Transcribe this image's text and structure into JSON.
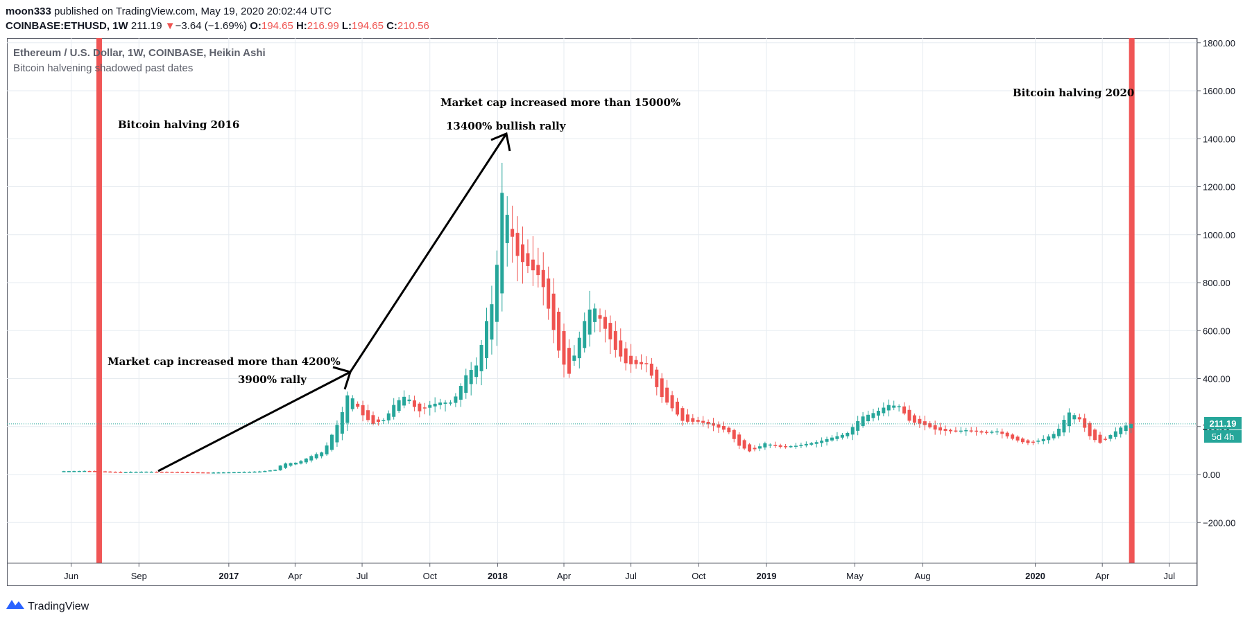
{
  "header": {
    "publisher": "moon333",
    "published_text": "published on TradingView.com, May 19, 2020 20:02:44 UTC",
    "symbol": "COINBASE:ETHUSD, 1W",
    "last": "211.19",
    "change": "−3.64 (−1.69%)",
    "o_label": "O:",
    "o_val": "194.65",
    "h_label": "H:",
    "h_val": "216.99",
    "l_label": "L:",
    "l_val": "194.65",
    "c_label": "C:",
    "c_val": "210.56"
  },
  "legend": {
    "title": "Ethereum / U.S. Dollar, 1W, COINBASE, Heikin Ashi",
    "subtitle": "Bitcoin halvening shadowed past dates"
  },
  "annotations": {
    "halving_2016": "Bitcoin halving 2016",
    "halving_2020": "Bitcoin halving 2020",
    "mcap_4200": "Market cap increased more than 4200%",
    "rally_3900": "3900% rally",
    "mcap_15000": "Market cap increased more than 15000%",
    "rally_13400": "13400% bullish rally"
  },
  "price_tag": {
    "price": "211.19",
    "countdown": "5d 4h"
  },
  "footer": {
    "brand": "TradingView"
  },
  "colors": {
    "up": "#26a69a",
    "down": "#ef5350",
    "halving": "#f05555",
    "grid": "#e6ebf0"
  },
  "chart_data": {
    "type": "candlestick",
    "chart_style": "Heikin Ashi",
    "interval": "1W",
    "ylim": [
      -380,
      1820
    ],
    "y_ticks": [
      1800,
      1600,
      1400,
      1200,
      1000,
      800,
      600,
      400,
      200,
      0,
      -200
    ],
    "y_tick_labels": [
      "1800.00",
      "1600.00",
      "1400.00",
      "1200.00",
      "1000.00",
      "800.00",
      "600.00",
      "400.00",
      "200.00",
      "0.00",
      "−200.00"
    ],
    "x_ticks": [
      {
        "label": "Jun",
        "date": "2016-06-01",
        "bold": false
      },
      {
        "label": "Sep",
        "date": "2016-09-01",
        "bold": false
      },
      {
        "label": "2017",
        "date": "2017-01-01",
        "bold": true
      },
      {
        "label": "Apr",
        "date": "2017-04-01",
        "bold": false
      },
      {
        "label": "Jul",
        "date": "2017-07-01",
        "bold": false
      },
      {
        "label": "Oct",
        "date": "2017-10-01",
        "bold": false
      },
      {
        "label": "2018",
        "date": "2018-01-01",
        "bold": true
      },
      {
        "label": "Apr",
        "date": "2018-04-01",
        "bold": false
      },
      {
        "label": "Jul",
        "date": "2018-07-01",
        "bold": false
      },
      {
        "label": "Oct",
        "date": "2018-10-01",
        "bold": false
      },
      {
        "label": "2019",
        "date": "2019-01-01",
        "bold": true
      },
      {
        "label": "May",
        "date": "2019-05-01",
        "bold": false
      },
      {
        "label": "Aug",
        "date": "2019-08-01",
        "bold": false
      },
      {
        "label": "2020",
        "date": "2020-01-01",
        "bold": true
      },
      {
        "label": "Apr",
        "date": "2020-04-01",
        "bold": false
      },
      {
        "label": "Jul",
        "date": "2020-07-01",
        "bold": false
      }
    ],
    "halvings": [
      "2016-07-09",
      "2020-05-11"
    ],
    "last_price": 211.19,
    "close_path": [
      [
        "2016-05-22",
        14
      ],
      [
        "2016-06-19",
        15
      ],
      [
        "2016-08-01",
        10
      ],
      [
        "2016-09-10",
        12
      ],
      [
        "2016-10-15",
        11
      ],
      [
        "2016-12-01",
        8
      ],
      [
        "2017-01-10",
        10
      ],
      [
        "2017-02-15",
        13
      ],
      [
        "2017-03-05",
        20
      ],
      [
        "2017-03-15",
        45
      ],
      [
        "2017-04-05",
        50
      ],
      [
        "2017-04-25",
        80
      ],
      [
        "2017-05-10",
        95
      ],
      [
        "2017-05-20",
        160
      ],
      [
        "2017-06-01",
        230
      ],
      [
        "2017-06-12",
        340
      ],
      [
        "2017-06-20",
        310
      ],
      [
        "2017-07-01",
        250
      ],
      [
        "2017-07-15",
        210
      ],
      [
        "2017-08-01",
        230
      ],
      [
        "2017-08-15",
        300
      ],
      [
        "2017-08-30",
        330
      ],
      [
        "2017-09-15",
        260
      ],
      [
        "2017-10-01",
        290
      ],
      [
        "2017-10-15",
        300
      ],
      [
        "2017-11-01",
        300
      ],
      [
        "2017-11-20",
        420
      ],
      [
        "2017-12-05",
        460
      ],
      [
        "2017-12-15",
        620
      ],
      [
        "2017-12-25",
        720
      ],
      [
        "2018-01-01",
        900
      ],
      [
        "2018-01-08",
        1220
      ],
      [
        "2018-01-15",
        1060
      ],
      [
        "2018-01-29",
        900
      ],
      [
        "2018-02-15",
        860
      ],
      [
        "2018-03-01",
        820
      ],
      [
        "2018-03-15",
        640
      ],
      [
        "2018-03-28",
        480
      ],
      [
        "2018-04-08",
        420
      ],
      [
        "2018-04-20",
        550
      ],
      [
        "2018-05-01",
        660
      ],
      [
        "2018-05-10",
        710
      ],
      [
        "2018-05-25",
        620
      ],
      [
        "2018-06-10",
        520
      ],
      [
        "2018-06-25",
        460
      ],
      [
        "2018-07-08",
        460
      ],
      [
        "2018-07-22",
        460
      ],
      [
        "2018-08-10",
        330
      ],
      [
        "2018-08-25",
        280
      ],
      [
        "2018-09-10",
        220
      ],
      [
        "2018-10-01",
        220
      ],
      [
        "2018-10-20",
        205
      ],
      [
        "2018-11-10",
        180
      ],
      [
        "2018-11-25",
        120
      ],
      [
        "2018-12-10",
        95
      ],
      [
        "2018-12-30",
        130
      ],
      [
        "2019-01-20",
        115
      ],
      [
        "2019-02-10",
        120
      ],
      [
        "2019-03-10",
        135
      ],
      [
        "2019-04-01",
        155
      ],
      [
        "2019-04-20",
        170
      ],
      [
        "2019-05-10",
        240
      ],
      [
        "2019-05-30",
        260
      ],
      [
        "2019-06-15",
        290
      ],
      [
        "2019-06-30",
        285
      ],
      [
        "2019-07-15",
        220
      ],
      [
        "2019-08-01",
        210
      ],
      [
        "2019-08-20",
        185
      ],
      [
        "2019-09-10",
        180
      ],
      [
        "2019-09-30",
        185
      ],
      [
        "2019-10-20",
        175
      ],
      [
        "2019-11-10",
        180
      ],
      [
        "2019-11-30",
        150
      ],
      [
        "2019-12-20",
        130
      ],
      [
        "2020-01-10",
        145
      ],
      [
        "2020-01-30",
        175
      ],
      [
        "2020-02-15",
        260
      ],
      [
        "2020-02-28",
        240
      ],
      [
        "2020-03-15",
        160
      ],
      [
        "2020-03-28",
        130
      ],
      [
        "2020-04-10",
        160
      ],
      [
        "2020-04-28",
        200
      ],
      [
        "2020-05-11",
        211
      ]
    ]
  }
}
